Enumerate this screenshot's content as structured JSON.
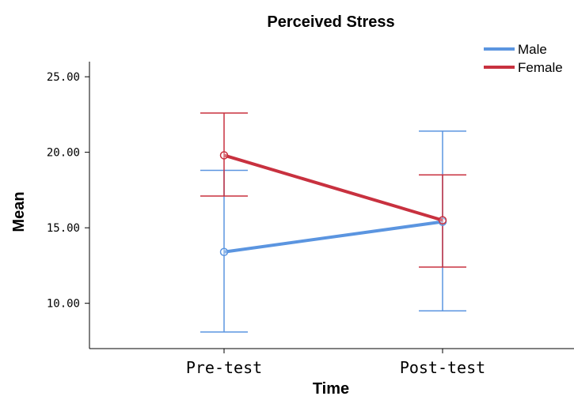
{
  "chart_data": {
    "type": "line",
    "title": "Perceived Stress",
    "xlabel": "Time",
    "ylabel": "Mean",
    "categories": [
      "Pre-test",
      "Post-test"
    ],
    "yticks": [
      "10.00",
      "15.00",
      "20.00",
      "25.00"
    ],
    "ylim": [
      7,
      26
    ],
    "legend_position": "top-right",
    "grid": false,
    "series": [
      {
        "name": "Male",
        "color": "#5b95e0",
        "values": [
          13.4,
          15.4
        ],
        "error_low": [
          8.1,
          9.5
        ],
        "error_high": [
          18.8,
          21.4
        ]
      },
      {
        "name": "Female",
        "color": "#c8313f",
        "values": [
          19.8,
          15.5
        ],
        "error_low": [
          17.1,
          12.4
        ],
        "error_high": [
          22.6,
          18.5
        ]
      }
    ]
  }
}
